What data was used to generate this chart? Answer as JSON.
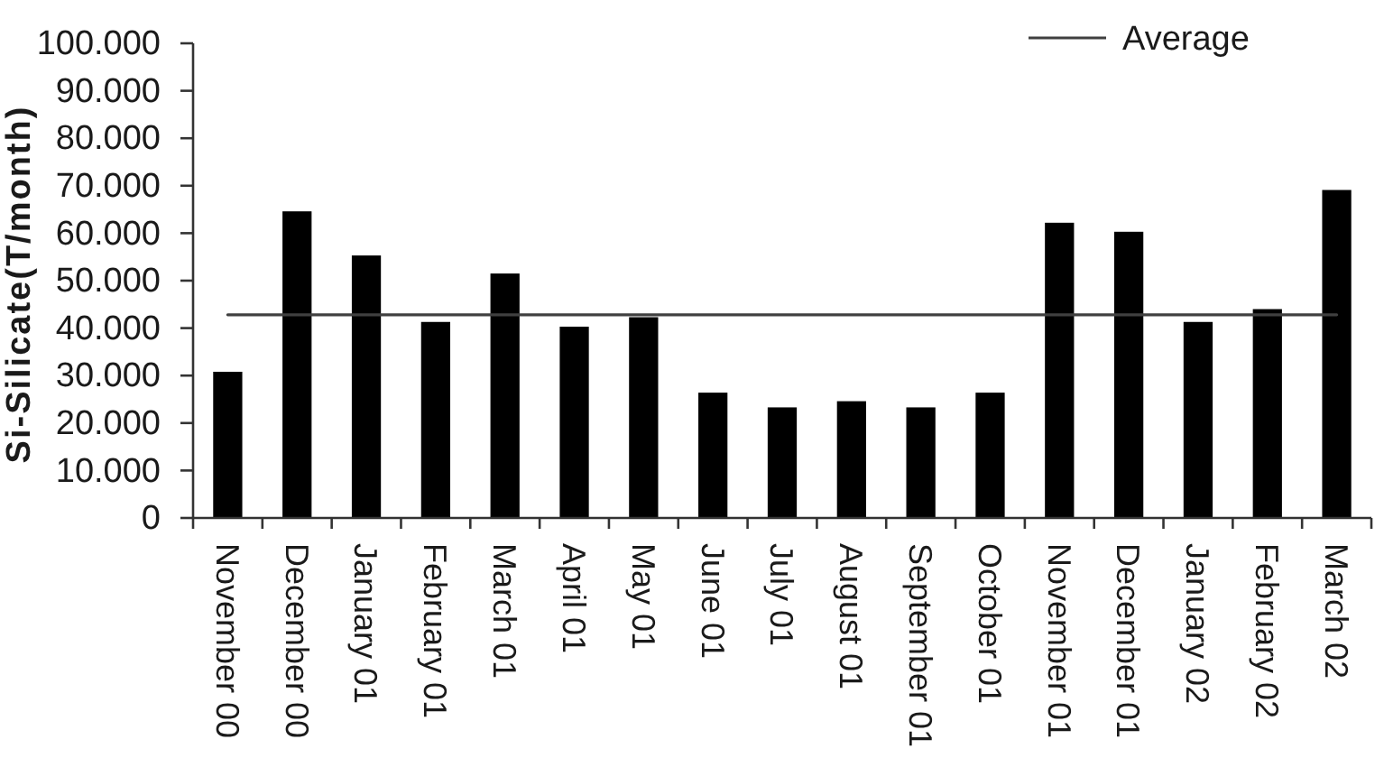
{
  "chart_data": {
    "type": "bar",
    "ylabel": "Si-Silicate(T/month)",
    "categories": [
      "November 00",
      "December 00",
      "January 01",
      "February 01",
      "March 01",
      "April 01",
      "May 01",
      "June 01",
      "July 01",
      "August 01",
      "September 01",
      "October 01",
      "November 01",
      "December 01",
      "January 02",
      "February 02",
      "March 02"
    ],
    "series": [
      {
        "type": "bar",
        "color": "#000000",
        "values": [
          30800,
          64600,
          55300,
          41300,
          51500,
          40300,
          42300,
          26400,
          23300,
          24600,
          23300,
          26400,
          62200,
          60300,
          41300,
          44000,
          69100
        ]
      },
      {
        "type": "line",
        "name": "Average",
        "color": "#404040",
        "values": [
          42800,
          42800,
          42800,
          42800,
          42800,
          42800,
          42800,
          42800,
          42800,
          42800,
          42800,
          42800,
          42800,
          42800,
          42800,
          42800,
          42800
        ]
      }
    ],
    "ylim": [
      0,
      100000
    ],
    "yticks": [
      0,
      {
        "value": 10000,
        "label": "10.000"
      },
      {
        "value": 20000,
        "label": "20.000"
      },
      {
        "value": 30000,
        "label": "30.000"
      },
      {
        "value": 40000,
        "label": "40.000"
      },
      {
        "value": 50000,
        "label": "50.000"
      },
      {
        "value": 60000,
        "label": "60.000"
      },
      {
        "value": 70000,
        "label": "70.000"
      },
      {
        "value": 80000,
        "label": "80.000"
      },
      {
        "value": 90000,
        "label": "90.000"
      },
      {
        "value": 100000,
        "label": "100.000"
      }
    ],
    "legend": "top right"
  }
}
